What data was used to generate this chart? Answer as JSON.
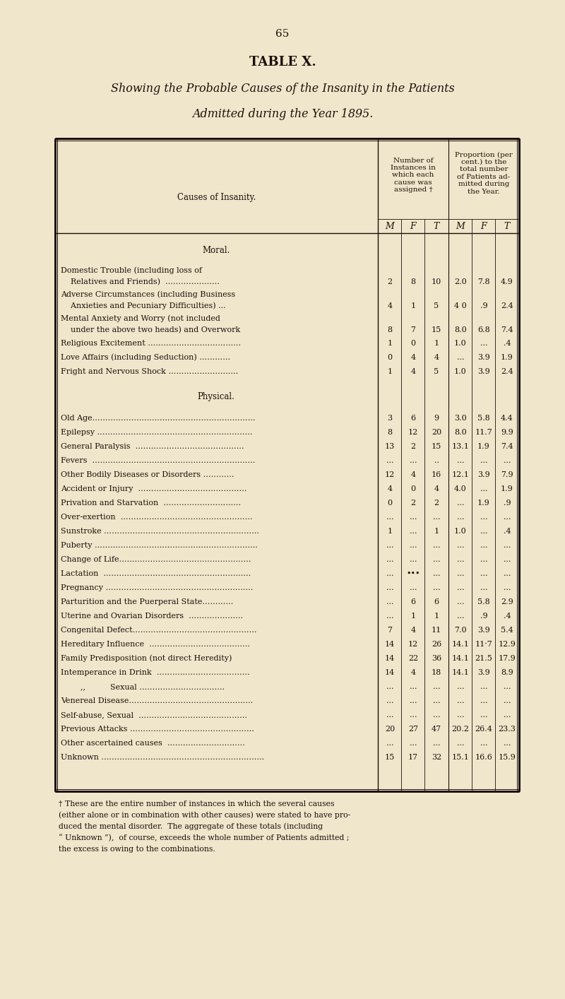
{
  "page_number": "65",
  "table_title": "TABLE X.",
  "subtitle_line1": "Showing the Probable Causes of the Insanity in the Patients",
  "subtitle_line2": "Admitted during the Year 1895.",
  "background_color": "#f0e6cc",
  "text_color": "#1a1008",
  "col_header_left": "Causes of Insanity.",
  "num_header": "Number of\nInstances in\nwhich each\ncause was\nassigned †",
  "prop_header": "Proportion (per\ncent.) to the\ntotal number\nof Patients ad-\nmitted during\nthe Year.",
  "sub_headers": [
    "M",
    "F",
    "T",
    "M",
    "F",
    "T"
  ],
  "section_moral": "Moral.",
  "section_physical": "Physical.",
  "rows": [
    {
      "label1": "Domestic Trouble (including loss of",
      "label2": "    Relatives and Friends)  …………………",
      "M": "2",
      "F": "8",
      "T": "10",
      "pM": "2.0",
      "pF": "7.8",
      "pT": "4.9",
      "lines": 2
    },
    {
      "label1": "Adverse Circumstances (including Business",
      "label2": "    Anxieties and Pecuniary Difficulties) ...",
      "M": "4",
      "F": "1",
      "T": "5",
      "pM": "4 0",
      "pF": ".9",
      "pT": "2.4",
      "lines": 2
    },
    {
      "label1": "Mental Anxiety and Worry (not included",
      "label2": "    under the above two heads) and Overwork",
      "M": "8",
      "F": "7",
      "T": "15",
      "pM": "8.0",
      "pF": "6.8",
      "pT": "7.4",
      "lines": 2
    },
    {
      "label1": "Religious Excitement ………………………………",
      "label2": "",
      "M": "1",
      "F": "0",
      "T": "1",
      "pM": "1.0",
      "pF": "...",
      "pT": ".4",
      "lines": 1
    },
    {
      "label1": "Love Affairs (including Seduction) …………",
      "label2": "",
      "M": "0",
      "F": "4",
      "T": "4",
      "pM": "...",
      "pF": "3.9",
      "pT": "1.9",
      "lines": 1
    },
    {
      "label1": "Fright and Nervous Shock ………………………",
      "label2": "",
      "M": "1",
      "F": "4",
      "T": "5",
      "pM": "1.0",
      "pF": "3.9",
      "pT": "2.4",
      "lines": 1
    },
    {
      "label1": "Old Age………………………………………………………",
      "label2": "",
      "M": "3",
      "F": "6",
      "T": "9",
      "pM": "3.0",
      "pF": "5.8",
      "pT": "4.4",
      "lines": 1
    },
    {
      "label1": "Epilepsy ……………………………………………………",
      "label2": "",
      "M": "8",
      "F": "12",
      "T": "20",
      "pM": "8.0",
      "pF": "11.7",
      "pT": "9.9",
      "lines": 1
    },
    {
      "label1": "General Paralysis  ……………………………………",
      "label2": "",
      "M": "13",
      "F": "2",
      "T": "15",
      "pM": "13.1",
      "pF": "1.9",
      "pT": "7.4",
      "lines": 1
    },
    {
      "label1": "Fevers  ………………………………………………………",
      "label2": "",
      "M": "...",
      "F": "...",
      "T": "..",
      "pM": "...",
      "pF": "...",
      "pT": "...",
      "lines": 1
    },
    {
      "label1": "Other Bodily Diseases or Disorders …………",
      "label2": "",
      "M": "12",
      "F": "4",
      "T": "16",
      "pM": "12.1",
      "pF": "3.9",
      "pT": "7.9",
      "lines": 1
    },
    {
      "label1": "Accident or Injury  ……………………………………",
      "label2": "",
      "M": "4",
      "F": "0",
      "T": "4",
      "pM": "4.0",
      "pF": "...",
      "pT": "1.9",
      "lines": 1
    },
    {
      "label1": "Privation and Starvation  …………………………",
      "label2": "",
      "M": "0",
      "F": "2",
      "T": "2",
      "pM": "...",
      "pF": "1.9",
      "pT": ".9",
      "lines": 1
    },
    {
      "label1": "Over-exertion  ……………………………………………",
      "label2": "",
      "M": "...",
      "F": "...",
      "T": "...",
      "pM": "...",
      "pF": "...",
      "pT": "...",
      "lines": 1
    },
    {
      "label1": "Sunstroke ……………………………………………………",
      "label2": "",
      "M": "1",
      "F": "...",
      "T": "1",
      "pM": "1.0",
      "pF": "...",
      "pT": ".4",
      "lines": 1
    },
    {
      "label1": "Puberty ………………………………………………………",
      "label2": "",
      "M": "...",
      "F": "...",
      "T": "...",
      "pM": "...",
      "pF": "...",
      "pT": "...",
      "lines": 1
    },
    {
      "label1": "Change of Life……………………………………………",
      "label2": "",
      "M": "...",
      "F": "...",
      "T": "...",
      "pM": "...",
      "pF": "...",
      "pT": "...",
      "lines": 1
    },
    {
      "label1": "Lactation  …………………………………………………",
      "label2": "",
      "M": "...",
      "F": "•••",
      "T": "...",
      "pM": "...",
      "pF": "...",
      "pT": "...",
      "lines": 1
    },
    {
      "label1": "Pregnancy …………………………………………………",
      "label2": "",
      "M": "...",
      "F": "...",
      "T": "...",
      "pM": "...",
      "pF": "...",
      "pT": "...",
      "lines": 1
    },
    {
      "label1": "Parturition and the Puerperal State…………",
      "label2": "",
      "M": "...",
      "F": "6",
      "T": "6",
      "pM": "...",
      "pF": "5.8",
      "pT": "2.9",
      "lines": 1
    },
    {
      "label1": "Uterine and Ovarian Disorders  …………………",
      "label2": "",
      "M": "...",
      "F": "1",
      "T": "1",
      "pM": "...",
      "pF": ".9",
      "pT": ".4",
      "lines": 1
    },
    {
      "label1": "Congenital Defect…………………………………………",
      "label2": "",
      "M": "7",
      "F": "4",
      "T": "11",
      "pM": "7.0",
      "pF": "3.9",
      "pT": "5.4",
      "lines": 1
    },
    {
      "label1": "Hereditary Influence  …………………………………",
      "label2": "",
      "M": "14",
      "F": "12",
      "T": "26",
      "pM": "14.1",
      "pF": "11·7",
      "pT": "12.9",
      "lines": 1
    },
    {
      "label1": "Family Predisposition (not direct Heredity)",
      "label2": "",
      "M": "14",
      "F": "22",
      "T": "36",
      "pM": "14.1",
      "pF": "21.5",
      "pT": "17.9",
      "lines": 1
    },
    {
      "label1": "Intemperance in Drink  ………………………………",
      "label2": "",
      "M": "14",
      "F": "4",
      "T": "18",
      "pM": "14.1",
      "pF": "3.9",
      "pT": "8.9",
      "lines": 1
    },
    {
      "label1": "        ,,          Sexual ……………………………",
      "label2": "",
      "M": "...",
      "F": "...",
      "T": "...",
      "pM": "...",
      "pF": "...",
      "pT": "...",
      "lines": 1
    },
    {
      "label1": "Venereal Disease…………………………………………",
      "label2": "",
      "M": "...",
      "F": "...",
      "T": "...",
      "pM": "...",
      "pF": "...",
      "pT": "...",
      "lines": 1
    },
    {
      "label1": "Self-abuse, Sexual  ……………………………………",
      "label2": "",
      "M": "...",
      "F": "...",
      "T": "...",
      "pM": "...",
      "pF": "...",
      "pT": "...",
      "lines": 1
    },
    {
      "label1": "Previous Attacks …………………………………………",
      "label2": "",
      "M": "20",
      "F": "27",
      "T": "47",
      "pM": "20.2",
      "pF": "26.4",
      "pT": "23.3",
      "lines": 1
    },
    {
      "label1": "Other ascertained causes  …………………………",
      "label2": "",
      "M": "...",
      "F": "...",
      "T": "...",
      "pM": "...",
      "pF": "...",
      "pT": "...",
      "lines": 1
    },
    {
      "label1": "Unknown ………………………………………………………",
      "label2": "",
      "M": "15",
      "F": "17",
      "T": "32",
      "pM": "15.1",
      "pF": "16.6",
      "pT": "15.9",
      "lines": 1
    }
  ],
  "footnote_lines": [
    "† These are the entire number of instances in which the several causes",
    "(either alone or in combination with other causes) were stated to have pro-",
    "duced the mental disorder.  The aggregate of these totals (including",
    "“ Unknown ”),  of course, exceeds the whole number of Patients admitted ;",
    "the excess is owing to the combinations."
  ]
}
